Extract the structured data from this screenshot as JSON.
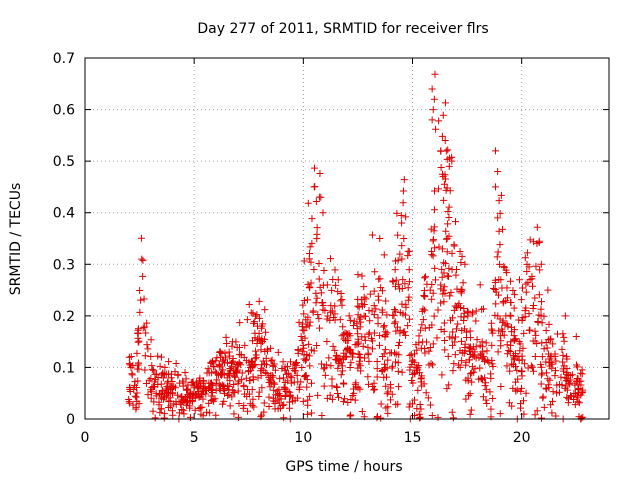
{
  "chart_data": {
    "type": "scatter",
    "title": "Day 277 of 2011, SRMTID for receiver flrs",
    "xlabel": "GPS time / hours",
    "ylabel": "SRMTID / TECUs",
    "xlim": [
      0,
      24
    ],
    "ylim": [
      0,
      0.7
    ],
    "xticks": [
      "0",
      "5",
      "10",
      "15",
      "20"
    ],
    "yticks": [
      "0",
      "0.1",
      "0.2",
      "0.3",
      "0.4",
      "0.5",
      "0.6",
      "0.7"
    ],
    "grid": true,
    "marker": "plus",
    "series_color": "#e00000",
    "series": [
      {
        "name": "SRMTID",
        "trend": [
          [
            2.0,
            0.09
          ],
          [
            2.3,
            0.06
          ],
          [
            2.5,
            0.12
          ],
          [
            2.6,
            0.28
          ],
          [
            2.7,
            0.2
          ],
          [
            2.8,
            0.1
          ],
          [
            3.0,
            0.07
          ],
          [
            3.5,
            0.06
          ],
          [
            4.0,
            0.05
          ],
          [
            4.3,
            0.05
          ],
          [
            4.8,
            0.04
          ],
          [
            5.0,
            0.05
          ],
          [
            5.5,
            0.05
          ],
          [
            6.0,
            0.07
          ],
          [
            6.5,
            0.08
          ],
          [
            7.0,
            0.09
          ],
          [
            7.5,
            0.1
          ],
          [
            8.0,
            0.12
          ],
          [
            8.3,
            0.11
          ],
          [
            8.7,
            0.07
          ],
          [
            9.2,
            0.06
          ],
          [
            9.6,
            0.08
          ],
          [
            10.0,
            0.13
          ],
          [
            10.3,
            0.2
          ],
          [
            10.5,
            0.3
          ],
          [
            10.7,
            0.25
          ],
          [
            11.0,
            0.15
          ],
          [
            11.5,
            0.16
          ],
          [
            12.0,
            0.14
          ],
          [
            12.5,
            0.13
          ],
          [
            13.0,
            0.18
          ],
          [
            13.3,
            0.22
          ],
          [
            13.6,
            0.17
          ],
          [
            14.0,
            0.12
          ],
          [
            14.3,
            0.2
          ],
          [
            14.6,
            0.3
          ],
          [
            14.8,
            0.22
          ],
          [
            15.0,
            0.1
          ],
          [
            15.4,
            0.12
          ],
          [
            15.8,
            0.2
          ],
          [
            16.0,
            0.38
          ],
          [
            16.3,
            0.4
          ],
          [
            16.6,
            0.36
          ],
          [
            17.0,
            0.22
          ],
          [
            17.5,
            0.14
          ],
          [
            18.0,
            0.12
          ],
          [
            18.5,
            0.1
          ],
          [
            18.9,
            0.25
          ],
          [
            19.2,
            0.2
          ],
          [
            19.5,
            0.14
          ],
          [
            20.0,
            0.15
          ],
          [
            20.5,
            0.22
          ],
          [
            20.8,
            0.2
          ],
          [
            21.0,
            0.12
          ],
          [
            21.5,
            0.1
          ],
          [
            22.0,
            0.08
          ],
          [
            22.3,
            0.06
          ],
          [
            22.8,
            0.05
          ]
        ],
        "outliers": [
          [
            2.6,
            0.31
          ],
          [
            10.5,
            0.45
          ],
          [
            10.8,
            0.43
          ],
          [
            10.9,
            0.4
          ],
          [
            14.5,
            0.38
          ],
          [
            14.6,
            0.35
          ],
          [
            15.9,
            0.64
          ],
          [
            16.0,
            0.62
          ],
          [
            15.95,
            0.6
          ],
          [
            15.9,
            0.58
          ],
          [
            16.5,
            0.54
          ],
          [
            16.3,
            0.52
          ],
          [
            16.8,
            0.5
          ],
          [
            16.4,
            0.47
          ],
          [
            18.8,
            0.52
          ],
          [
            18.9,
            0.48
          ],
          [
            18.8,
            0.45
          ],
          [
            18.9,
            0.39
          ],
          [
            20.7,
            0.34
          ],
          [
            20.9,
            0.3
          ],
          [
            13.5,
            0.35
          ],
          [
            12.5,
            0.28
          ],
          [
            11.6,
            0.27
          ],
          [
            17.4,
            0.3
          ],
          [
            18.1,
            0.26
          ],
          [
            19.9,
            0.27
          ],
          [
            22.0,
            0.2
          ],
          [
            22.5,
            0.16
          ],
          [
            4.3,
            0.0
          ],
          [
            9.4,
            0.0
          ],
          [
            14.9,
            0.0
          ],
          [
            19.8,
            0.0
          ],
          [
            21.9,
            0.0
          ],
          [
            22.7,
            0.0
          ],
          [
            7.9,
            0.18
          ],
          [
            3.5,
            0.12
          ],
          [
            6.2,
            0.13
          ],
          [
            9.9,
            0.16
          ],
          [
            12.1,
            0.2
          ],
          [
            17.9,
            0.19
          ],
          [
            21.2,
            0.25
          ],
          [
            20.2,
            0.05
          ],
          [
            15.2,
            0.02
          ],
          [
            11.1,
            0.04
          ],
          [
            14.0,
            0.06
          ],
          [
            18.4,
            0.03
          ]
        ],
        "point_count": 1500,
        "seed": 277
      }
    ]
  }
}
